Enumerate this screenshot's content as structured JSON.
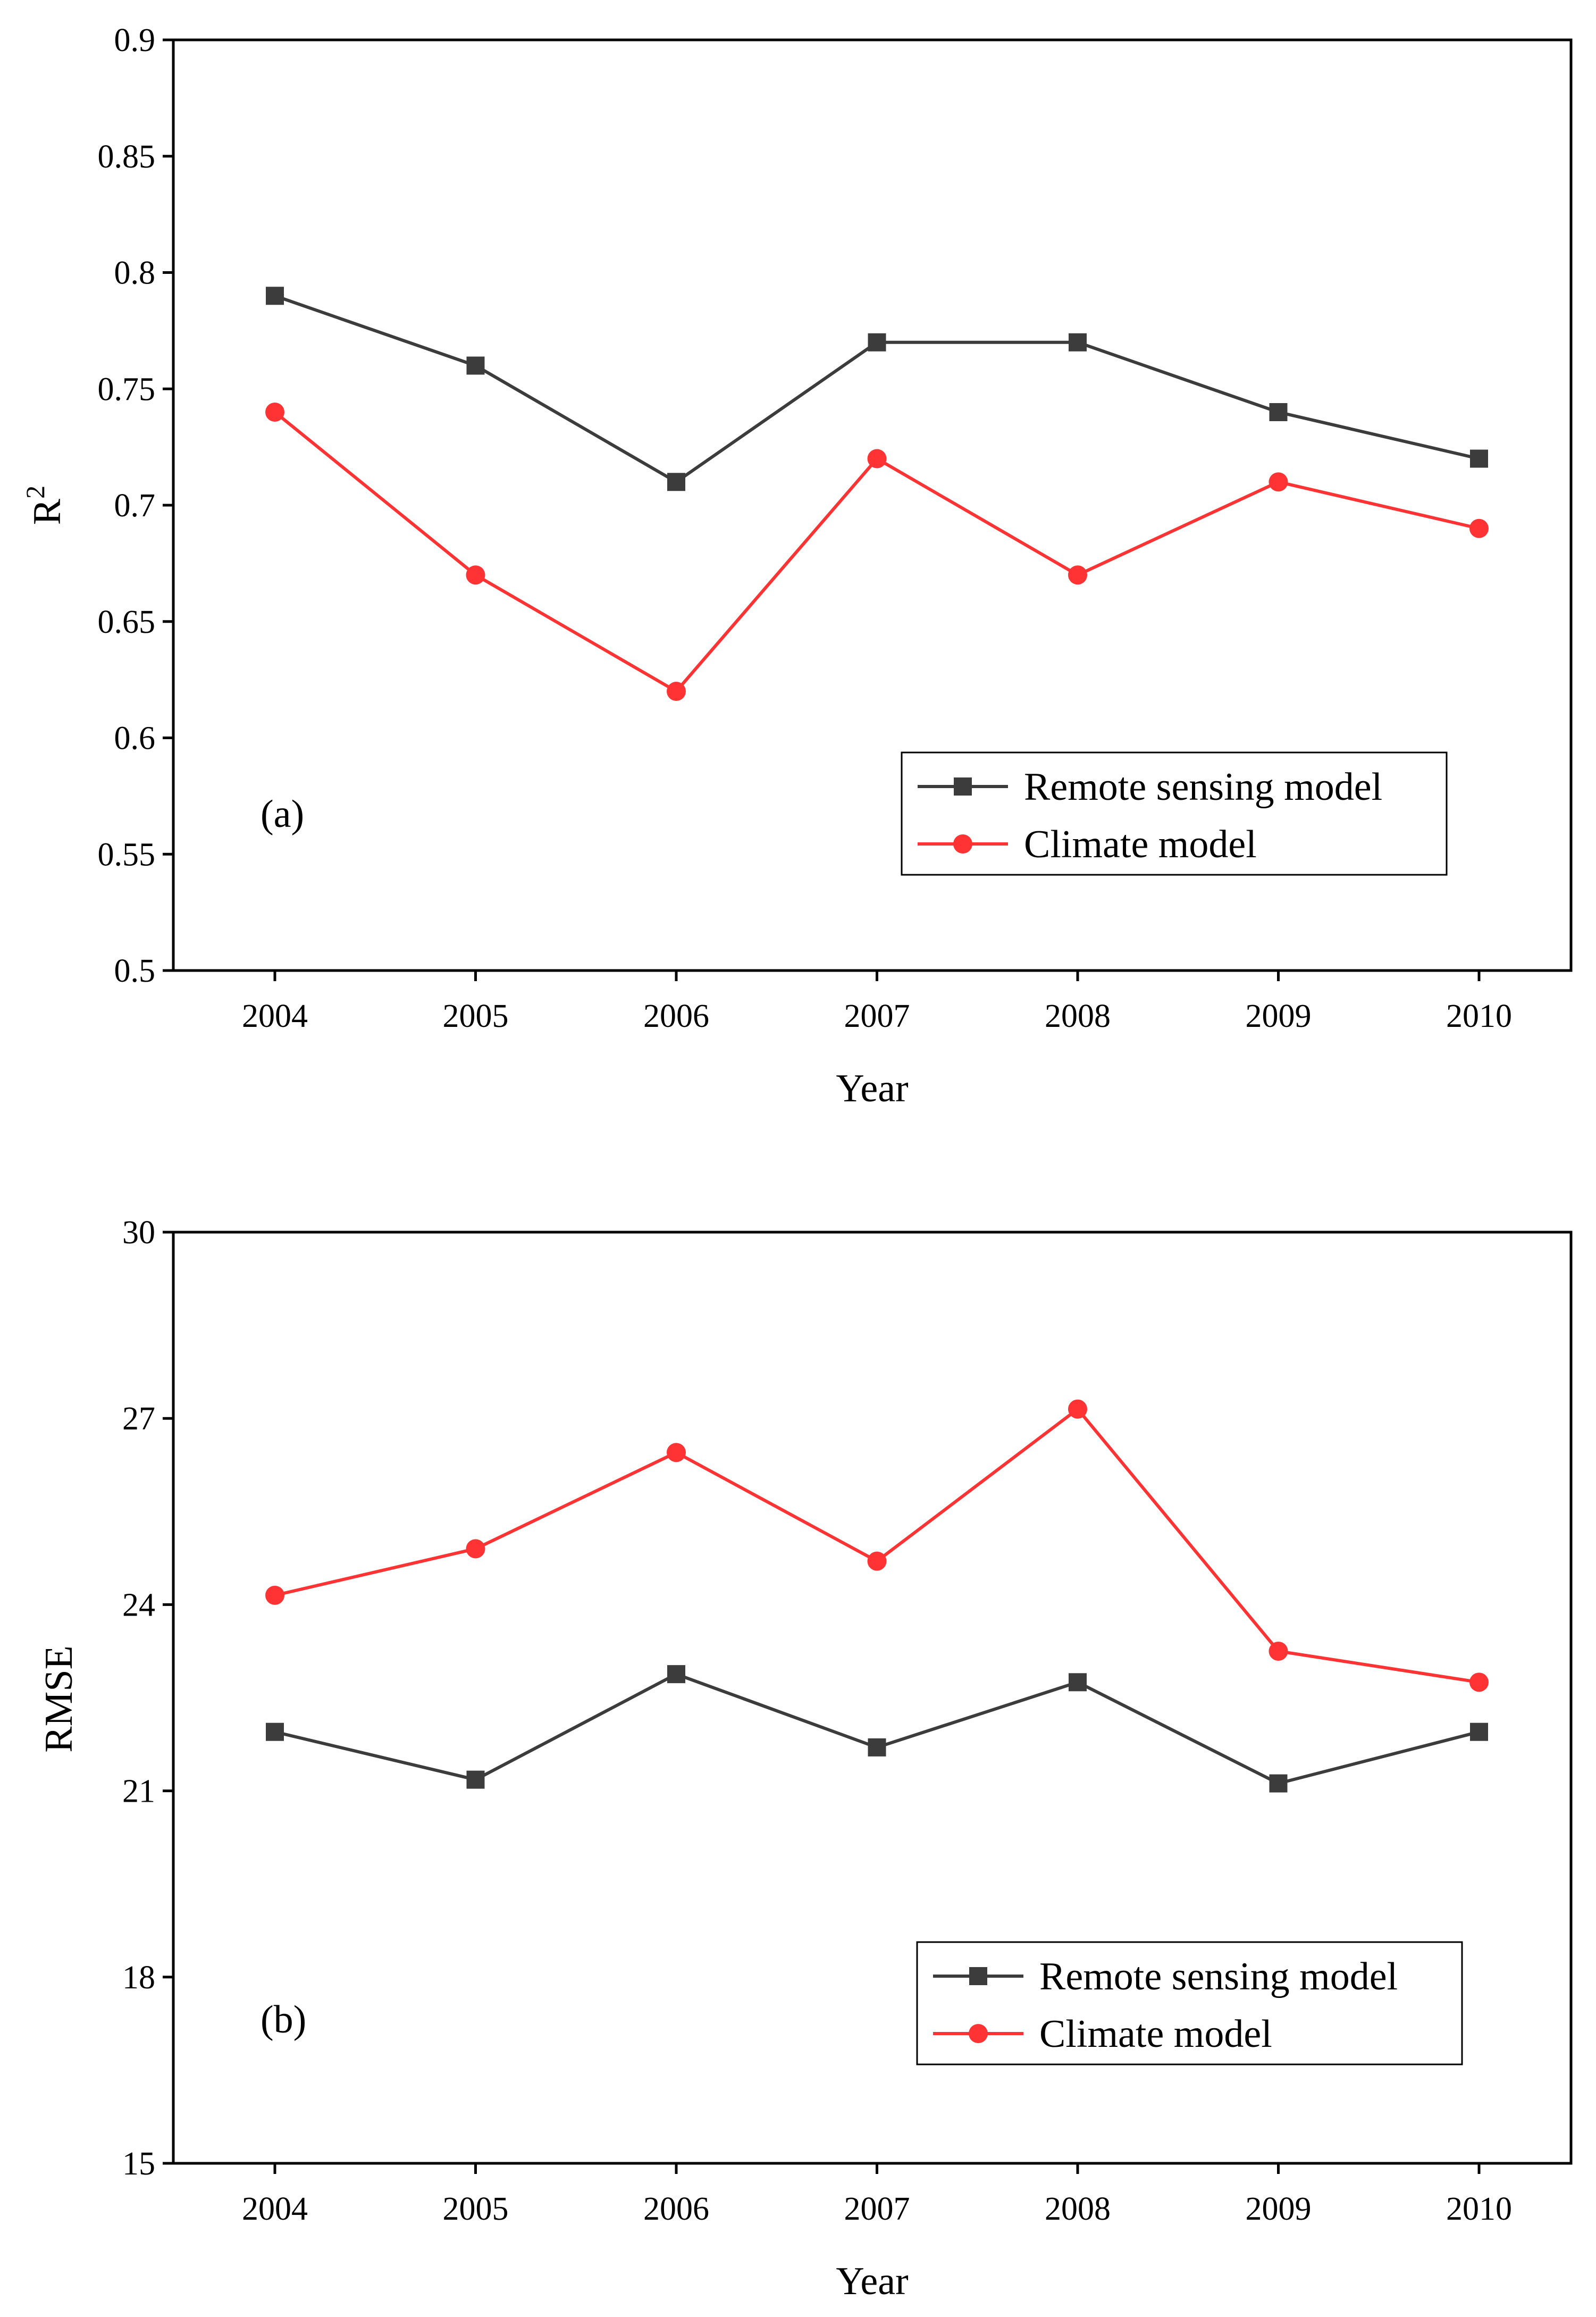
{
  "colors": {
    "remote_sensing": "#3c3c3c",
    "climate": "#ff3333",
    "axis": "#000000"
  },
  "chart_data": [
    {
      "type": "line",
      "panel_label": "(a)",
      "title": "",
      "xlabel": "Year",
      "ylabel": "R",
      "ylabel_superscript": "2",
      "categories": [
        "2004",
        "2005",
        "2006",
        "2007",
        "2008",
        "2009",
        "2010"
      ],
      "ylim": [
        0.5,
        0.9
      ],
      "yticks": [
        0.5,
        0.55,
        0.6,
        0.65,
        0.7,
        0.75,
        0.8,
        0.85,
        0.9
      ],
      "ytick_labels": [
        "0.5",
        "0.55",
        "0.6",
        "0.65",
        "0.7",
        "0.75",
        "0.8",
        "0.85",
        "0.9"
      ],
      "legend_position": "lower-right",
      "series": [
        {
          "name": "Remote sensing model",
          "marker": "square",
          "color_key": "remote_sensing",
          "values": [
            0.79,
            0.76,
            0.71,
            0.77,
            0.77,
            0.74,
            0.72
          ]
        },
        {
          "name": "Climate model",
          "marker": "circle",
          "color_key": "climate",
          "values": [
            0.74,
            0.67,
            0.62,
            0.72,
            0.67,
            0.71,
            0.69
          ]
        }
      ]
    },
    {
      "type": "line",
      "panel_label": "(b)",
      "title": "",
      "xlabel": "Year",
      "ylabel": "RMSE",
      "ylabel_superscript": "",
      "categories": [
        "2004",
        "2005",
        "2006",
        "2007",
        "2008",
        "2009",
        "2010"
      ],
      "ylim": [
        15,
        30
      ],
      "yticks": [
        15,
        18,
        21,
        24,
        27,
        30
      ],
      "ytick_labels": [
        "15",
        "18",
        "21",
        "24",
        "27",
        "30"
      ],
      "legend_position": "lower-right",
      "series": [
        {
          "name": "Remote sensing model",
          "marker": "square",
          "color_key": "remote_sensing",
          "values": [
            21.95,
            21.18,
            22.88,
            21.7,
            22.75,
            21.12,
            21.95
          ]
        },
        {
          "name": "Climate model",
          "marker": "circle",
          "color_key": "climate",
          "values": [
            24.15,
            24.9,
            26.45,
            24.7,
            27.15,
            23.25,
            22.75
          ]
        }
      ]
    }
  ]
}
